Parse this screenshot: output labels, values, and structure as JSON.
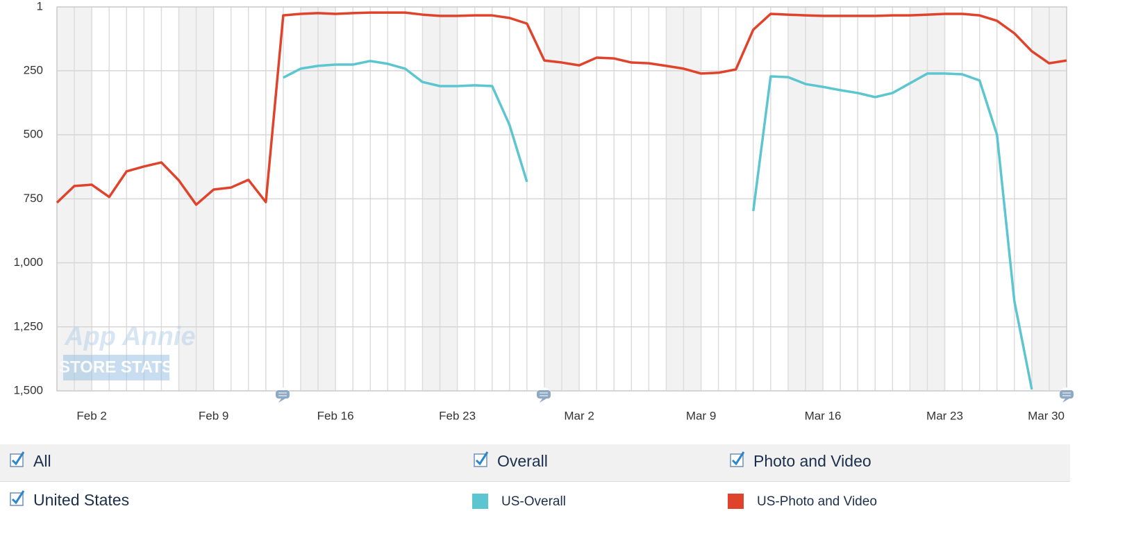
{
  "chart_data": {
    "type": "line",
    "categories": [
      null,
      null,
      "Feb 2",
      null,
      null,
      null,
      null,
      null,
      null,
      "Feb 9",
      null,
      null,
      null,
      null,
      null,
      null,
      "Feb 16",
      null,
      null,
      null,
      null,
      null,
      null,
      "Feb 23",
      null,
      null,
      null,
      null,
      null,
      null,
      "Mar 2",
      null,
      null,
      null,
      null,
      null,
      null,
      "Mar 9",
      null,
      null,
      null,
      null,
      null,
      null,
      "Mar 16",
      null,
      null,
      null,
      null,
      null,
      null,
      "Mar 23",
      null,
      null,
      null,
      null,
      null,
      null,
      "Mar 30"
    ],
    "series": [
      {
        "name": "US-Overall",
        "color": "#5bc5d0",
        "values": [
          null,
          null,
          null,
          null,
          null,
          null,
          null,
          null,
          null,
          null,
          null,
          null,
          null,
          277,
          242,
          231,
          226,
          226,
          212,
          223,
          242,
          294,
          310,
          310,
          307,
          310,
          462,
          684,
          null,
          null,
          null,
          null,
          null,
          null,
          null,
          null,
          null,
          null,
          null,
          null,
          798,
          272,
          275,
          302,
          313,
          326,
          337,
          353,
          337,
          299,
          261,
          261,
          264,
          288,
          500,
          1150,
          1494,
          null,
          null
        ]
      },
      {
        "name": "US-Photo and Video",
        "color": "#e0432b",
        "values": [
          765,
          700,
          695,
          743,
          643,
          624,
          608,
          678,
          773,
          714,
          706,
          676,
          763,
          34,
          28,
          25,
          28,
          25,
          23,
          23,
          23,
          31,
          36,
          36,
          34,
          34,
          44,
          66,
          210,
          218,
          229,
          199,
          202,
          218,
          221,
          231,
          242,
          261,
          258,
          245,
          90,
          28,
          31,
          34,
          36,
          36,
          36,
          36,
          34,
          34,
          31,
          28,
          28,
          34,
          55,
          104,
          174,
          221,
          210
        ]
      }
    ],
    "ylim": [
      1,
      1500
    ],
    "yticks": [
      1,
      250,
      500,
      750,
      {
        "value": 1000,
        "label": "1,000"
      },
      {
        "value": 1250,
        "label": "1,250"
      },
      {
        "value": 1500,
        "label": "1,500"
      }
    ],
    "y_reversed": true,
    "grid": true,
    "watermark": [
      "App Annie",
      "STORE STATS"
    ]
  },
  "filters": {
    "rows": [
      [
        "All",
        "Overall",
        "Photo and Video"
      ],
      [
        "United States"
      ]
    ]
  }
}
